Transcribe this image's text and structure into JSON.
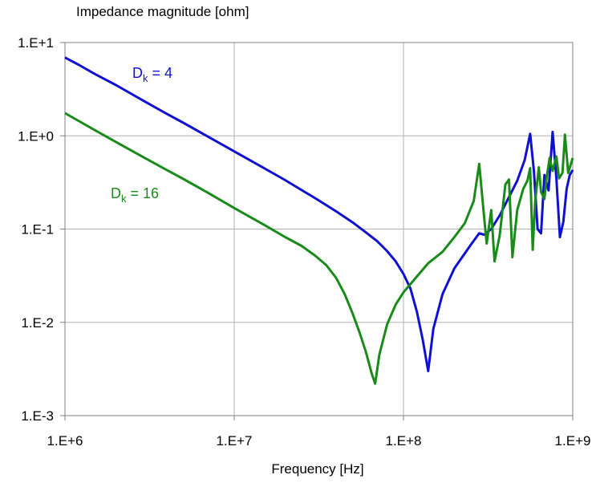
{
  "chart_data": {
    "type": "line",
    "title": "",
    "ylabel": "Impedance magnitude [ohm]",
    "xlabel": "Frequency [Hz]",
    "xscale": "log",
    "yscale": "log",
    "xlim": [
      1000000,
      1000000000
    ],
    "ylim": [
      0.001,
      10
    ],
    "grid": true,
    "x_ticks": [
      "1.E+6",
      "1.E+7",
      "1.E+8",
      "1.E+9"
    ],
    "y_ticks": [
      "1.E-3",
      "1.E-2",
      "1.E-1",
      "1.E+0",
      "1.E+1"
    ],
    "series": [
      {
        "label_main": "D",
        "label_sub": "k",
        "label_tail": " = 4",
        "color": "#1010d0",
        "points": [
          [
            1000000,
            6.9
          ],
          [
            1200000,
            5.8
          ],
          [
            1500000,
            4.6
          ],
          [
            2000000,
            3.5
          ],
          [
            3000000,
            2.3
          ],
          [
            4000000,
            1.72
          ],
          [
            5000000,
            1.38
          ],
          [
            7000000,
            0.98
          ],
          [
            10000000,
            0.68
          ],
          [
            15000000,
            0.45
          ],
          [
            20000000,
            0.335
          ],
          [
            30000000,
            0.215
          ],
          [
            40000000,
            0.155
          ],
          [
            50000000,
            0.118
          ],
          [
            60000000,
            0.092
          ],
          [
            70000000,
            0.074
          ],
          [
            80000000,
            0.058
          ],
          [
            90000000,
            0.045
          ],
          [
            100000000,
            0.033
          ],
          [
            110000000,
            0.023
          ],
          [
            120000000,
            0.013
          ],
          [
            130000000,
            0.0065
          ],
          [
            140000000,
            0.003
          ],
          [
            150000000,
            0.0085
          ],
          [
            170000000,
            0.02
          ],
          [
            200000000,
            0.038
          ],
          [
            250000000,
            0.068
          ],
          [
            280000000,
            0.09
          ],
          [
            300000000,
            0.087
          ],
          [
            330000000,
            0.1
          ],
          [
            370000000,
            0.14
          ],
          [
            420000000,
            0.22
          ],
          [
            470000000,
            0.33
          ],
          [
            520000000,
            0.55
          ],
          [
            560000000,
            1.05
          ],
          [
            590000000,
            0.42
          ],
          [
            620000000,
            0.1
          ],
          [
            650000000,
            0.09
          ],
          [
            680000000,
            0.38
          ],
          [
            720000000,
            0.26
          ],
          [
            760000000,
            1.1
          ],
          [
            800000000,
            0.35
          ],
          [
            840000000,
            0.082
          ],
          [
            880000000,
            0.12
          ],
          [
            920000000,
            0.27
          ],
          [
            960000000,
            0.38
          ],
          [
            1000000000,
            0.43
          ]
        ]
      },
      {
        "label_main": "D",
        "label_sub": "k",
        "label_tail": " = 16",
        "color": "#1a8a1a",
        "points": [
          [
            1000000,
            1.75
          ],
          [
            1200000,
            1.45
          ],
          [
            1500000,
            1.15
          ],
          [
            2000000,
            0.86
          ],
          [
            3000000,
            0.57
          ],
          [
            4000000,
            0.43
          ],
          [
            5000000,
            0.345
          ],
          [
            7000000,
            0.245
          ],
          [
            10000000,
            0.168
          ],
          [
            15000000,
            0.111
          ],
          [
            20000000,
            0.082
          ],
          [
            25000000,
            0.066
          ],
          [
            30000000,
            0.052
          ],
          [
            35000000,
            0.041
          ],
          [
            40000000,
            0.03
          ],
          [
            45000000,
            0.02
          ],
          [
            50000000,
            0.0125
          ],
          [
            55000000,
            0.0078
          ],
          [
            60000000,
            0.0048
          ],
          [
            65000000,
            0.0028
          ],
          [
            68000000,
            0.0022
          ],
          [
            72000000,
            0.0045
          ],
          [
            80000000,
            0.0095
          ],
          [
            90000000,
            0.0155
          ],
          [
            100000000,
            0.021
          ],
          [
            120000000,
            0.031
          ],
          [
            140000000,
            0.043
          ],
          [
            170000000,
            0.057
          ],
          [
            200000000,
            0.082
          ],
          [
            230000000,
            0.115
          ],
          [
            260000000,
            0.2
          ],
          [
            280000000,
            0.5
          ],
          [
            300000000,
            0.13
          ],
          [
            310000000,
            0.07
          ],
          [
            330000000,
            0.16
          ],
          [
            345000000,
            0.045
          ],
          [
            370000000,
            0.085
          ],
          [
            400000000,
            0.3
          ],
          [
            420000000,
            0.34
          ],
          [
            440000000,
            0.05
          ],
          [
            470000000,
            0.16
          ],
          [
            510000000,
            0.27
          ],
          [
            540000000,
            0.33
          ],
          [
            560000000,
            0.45
          ],
          [
            580000000,
            0.06
          ],
          [
            600000000,
            0.2
          ],
          [
            630000000,
            0.46
          ],
          [
            650000000,
            0.25
          ],
          [
            680000000,
            0.21
          ],
          [
            700000000,
            0.35
          ],
          [
            730000000,
            0.58
          ],
          [
            760000000,
            0.42
          ],
          [
            800000000,
            0.6
          ],
          [
            830000000,
            0.35
          ],
          [
            870000000,
            0.4
          ],
          [
            900000000,
            1.03
          ],
          [
            940000000,
            0.4
          ],
          [
            1000000000,
            0.58
          ]
        ]
      }
    ]
  }
}
